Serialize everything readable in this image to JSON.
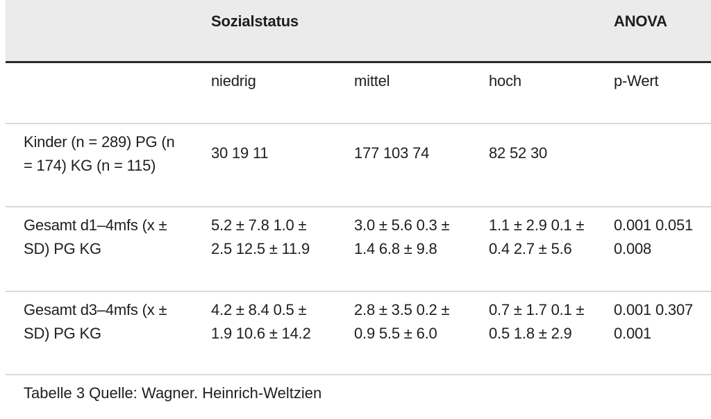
{
  "table": {
    "header": {
      "group_label": "Sozialstatus",
      "anova_label": "ANOVA"
    },
    "subheader": {
      "niedrig": "niedrig",
      "mittel": "mittel",
      "hoch": "hoch",
      "pwert": "p-Wert"
    },
    "rows": [
      {
        "label": "Kinder (n = 289) PG (n\n= 174) KG (n = 115)",
        "niedrig": "30 19 11",
        "mittel": "177 103  74",
        "hoch": "82 52 30",
        "pwert": ""
      },
      {
        "label": "Gesamt d1–4mfs (x ±\nSD) PG KG",
        "niedrig": "5.2 ± 7.8 1.0 ±\n2.5 12.5 ± 11.9",
        "mittel": "3.0 ± 5.6 0.3 ±\n1.4 6.8 ± 9.8",
        "hoch": "1.1 ± 2.9 0.1 ±\n0.4 2.7 ± 5.6",
        "pwert": "0.001 0.051\n0.008"
      },
      {
        "label": "Gesamt d3–4mfs (x ±\nSD) PG KG",
        "niedrig": "4.2 ± 8.4 0.5 ±\n1.9 10.6 ± 14.2",
        "mittel": "2.8 ± 3.5 0.2 ±\n0.9 5.5 ± 6.0",
        "hoch": "0.7 ± 1.7 0.1 ±\n0.5 1.8 ± 2.9",
        "pwert": "0.001 0.307\n0.001"
      }
    ],
    "caption": "Tabelle 3 Quelle: Wagner. Heinrich-Weltzien"
  }
}
